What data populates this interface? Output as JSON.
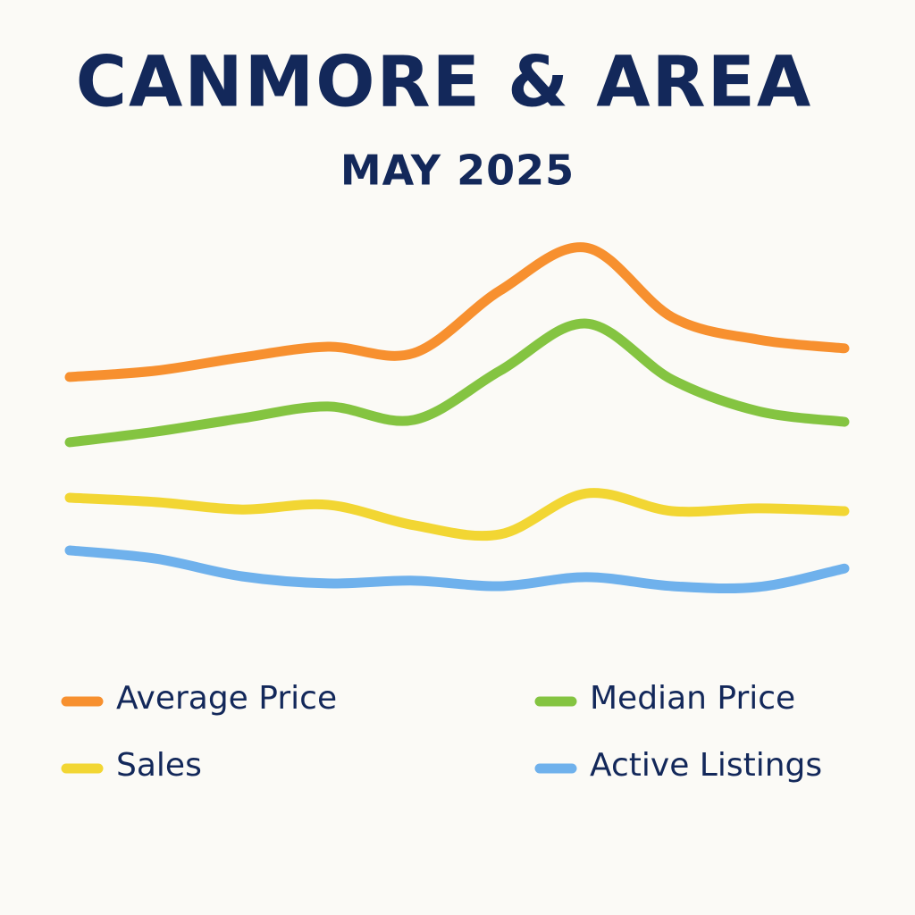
{
  "chart_data": {
    "type": "line",
    "title": "CANMORE & AREA",
    "subtitle": "MAY 2025",
    "ylim": [
      0,
      100
    ],
    "series": [
      {
        "name": "Average Price",
        "color": "#f7902f",
        "values": [
          63.2,
          64.8,
          68.2,
          70.9,
          69.3,
          85.2,
          96.1,
          78.4,
          72.7,
          70.5
        ]
      },
      {
        "name": "Median Price",
        "color": "#84c441",
        "values": [
          46.6,
          49.3,
          52.7,
          55.7,
          52.3,
          64.8,
          76.8,
          62.5,
          54.5,
          51.8
        ]
      },
      {
        "name": "Sales",
        "color": "#f2d633",
        "values": [
          32.5,
          31.4,
          29.5,
          30.7,
          25.5,
          23.2,
          33.6,
          29.1,
          29.8,
          29.1
        ]
      },
      {
        "name": "Active Listings",
        "color": "#6fb1ec",
        "values": [
          19.1,
          17.0,
          12.5,
          10.7,
          11.4,
          10.0,
          12.3,
          10.0,
          9.8,
          14.5
        ]
      }
    ],
    "legend": "bottom"
  }
}
